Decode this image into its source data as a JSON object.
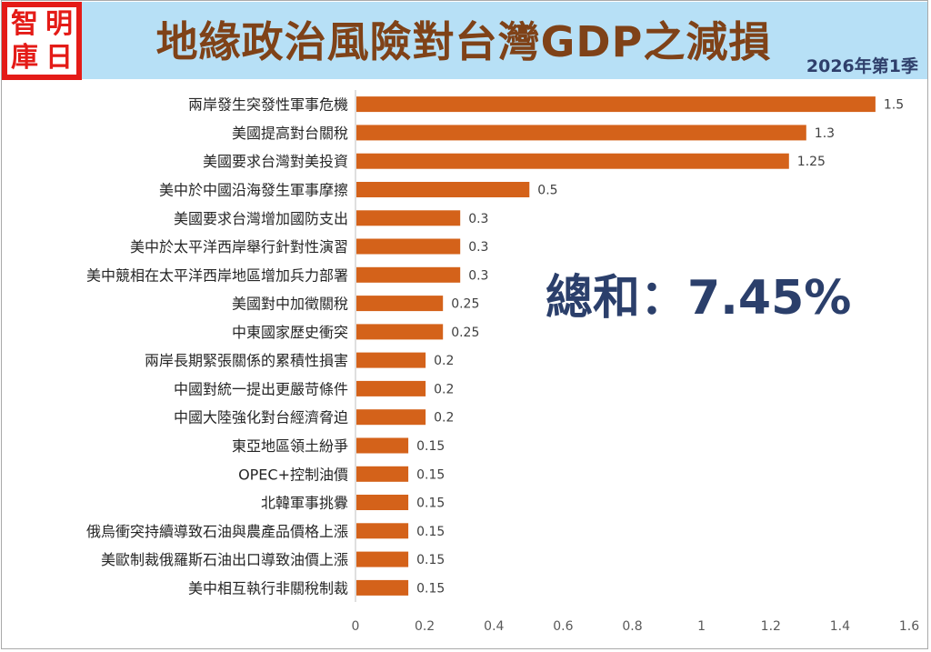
{
  "logo": {
    "chars": [
      "智",
      "明",
      "庫",
      "日"
    ]
  },
  "header": {
    "title": "地緣政治風險對台灣GDP之減損",
    "period": "2026年第1季"
  },
  "summary": {
    "text": "總和：7.45%"
  },
  "colors": {
    "bar": "#d4621a",
    "header_bg": "#b7e0f6",
    "title": "#7f4218",
    "logo": "#e41b17",
    "total": "#2b3f6b"
  },
  "chart_data": {
    "type": "bar",
    "orientation": "horizontal",
    "title": "地緣政治風險對台灣GDP之減損",
    "xlabel": "",
    "ylabel": "",
    "xlim": [
      0,
      1.6
    ],
    "xticks": [
      "0",
      "0.2",
      "0.4",
      "0.6",
      "0.8",
      "1",
      "1.2",
      "1.4",
      "1.6"
    ],
    "grid": false,
    "categories": [
      "兩岸發生突發性軍事危機",
      "美國提高對台關稅",
      "美國要求台灣對美投資",
      "美中於中國沿海發生軍事摩擦",
      "美國要求台灣增加國防支出",
      "美中於太平洋西岸舉行針對性演習",
      "美中競相在太平洋西岸地區增加兵力部署",
      "美國對中加徵關稅",
      "中東國家歷史衝突",
      "兩岸長期緊張關係的累積性損害",
      "中國對統一提出更嚴苛條件",
      "中國大陸強化對台經濟脅迫",
      "東亞地區領土紛爭",
      "OPEC+控制油價",
      "北韓軍事挑釁",
      "俄烏衝突持續導致石油與農產品價格上漲",
      "美歐制裁俄羅斯石油出口導致油價上漲",
      "美中相互執行非關稅制裁"
    ],
    "values": [
      1.5,
      1.3,
      1.25,
      0.5,
      0.3,
      0.3,
      0.3,
      0.25,
      0.25,
      0.2,
      0.2,
      0.2,
      0.15,
      0.15,
      0.15,
      0.15,
      0.15,
      0.15
    ],
    "value_labels": [
      "1.5",
      "1.3",
      "1.25",
      "0.5",
      "0.3",
      "0.3",
      "0.3",
      "0.25",
      "0.25",
      "0.2",
      "0.2",
      "0.2",
      "0.15",
      "0.15",
      "0.15",
      "0.15",
      "0.15",
      "0.15"
    ]
  }
}
